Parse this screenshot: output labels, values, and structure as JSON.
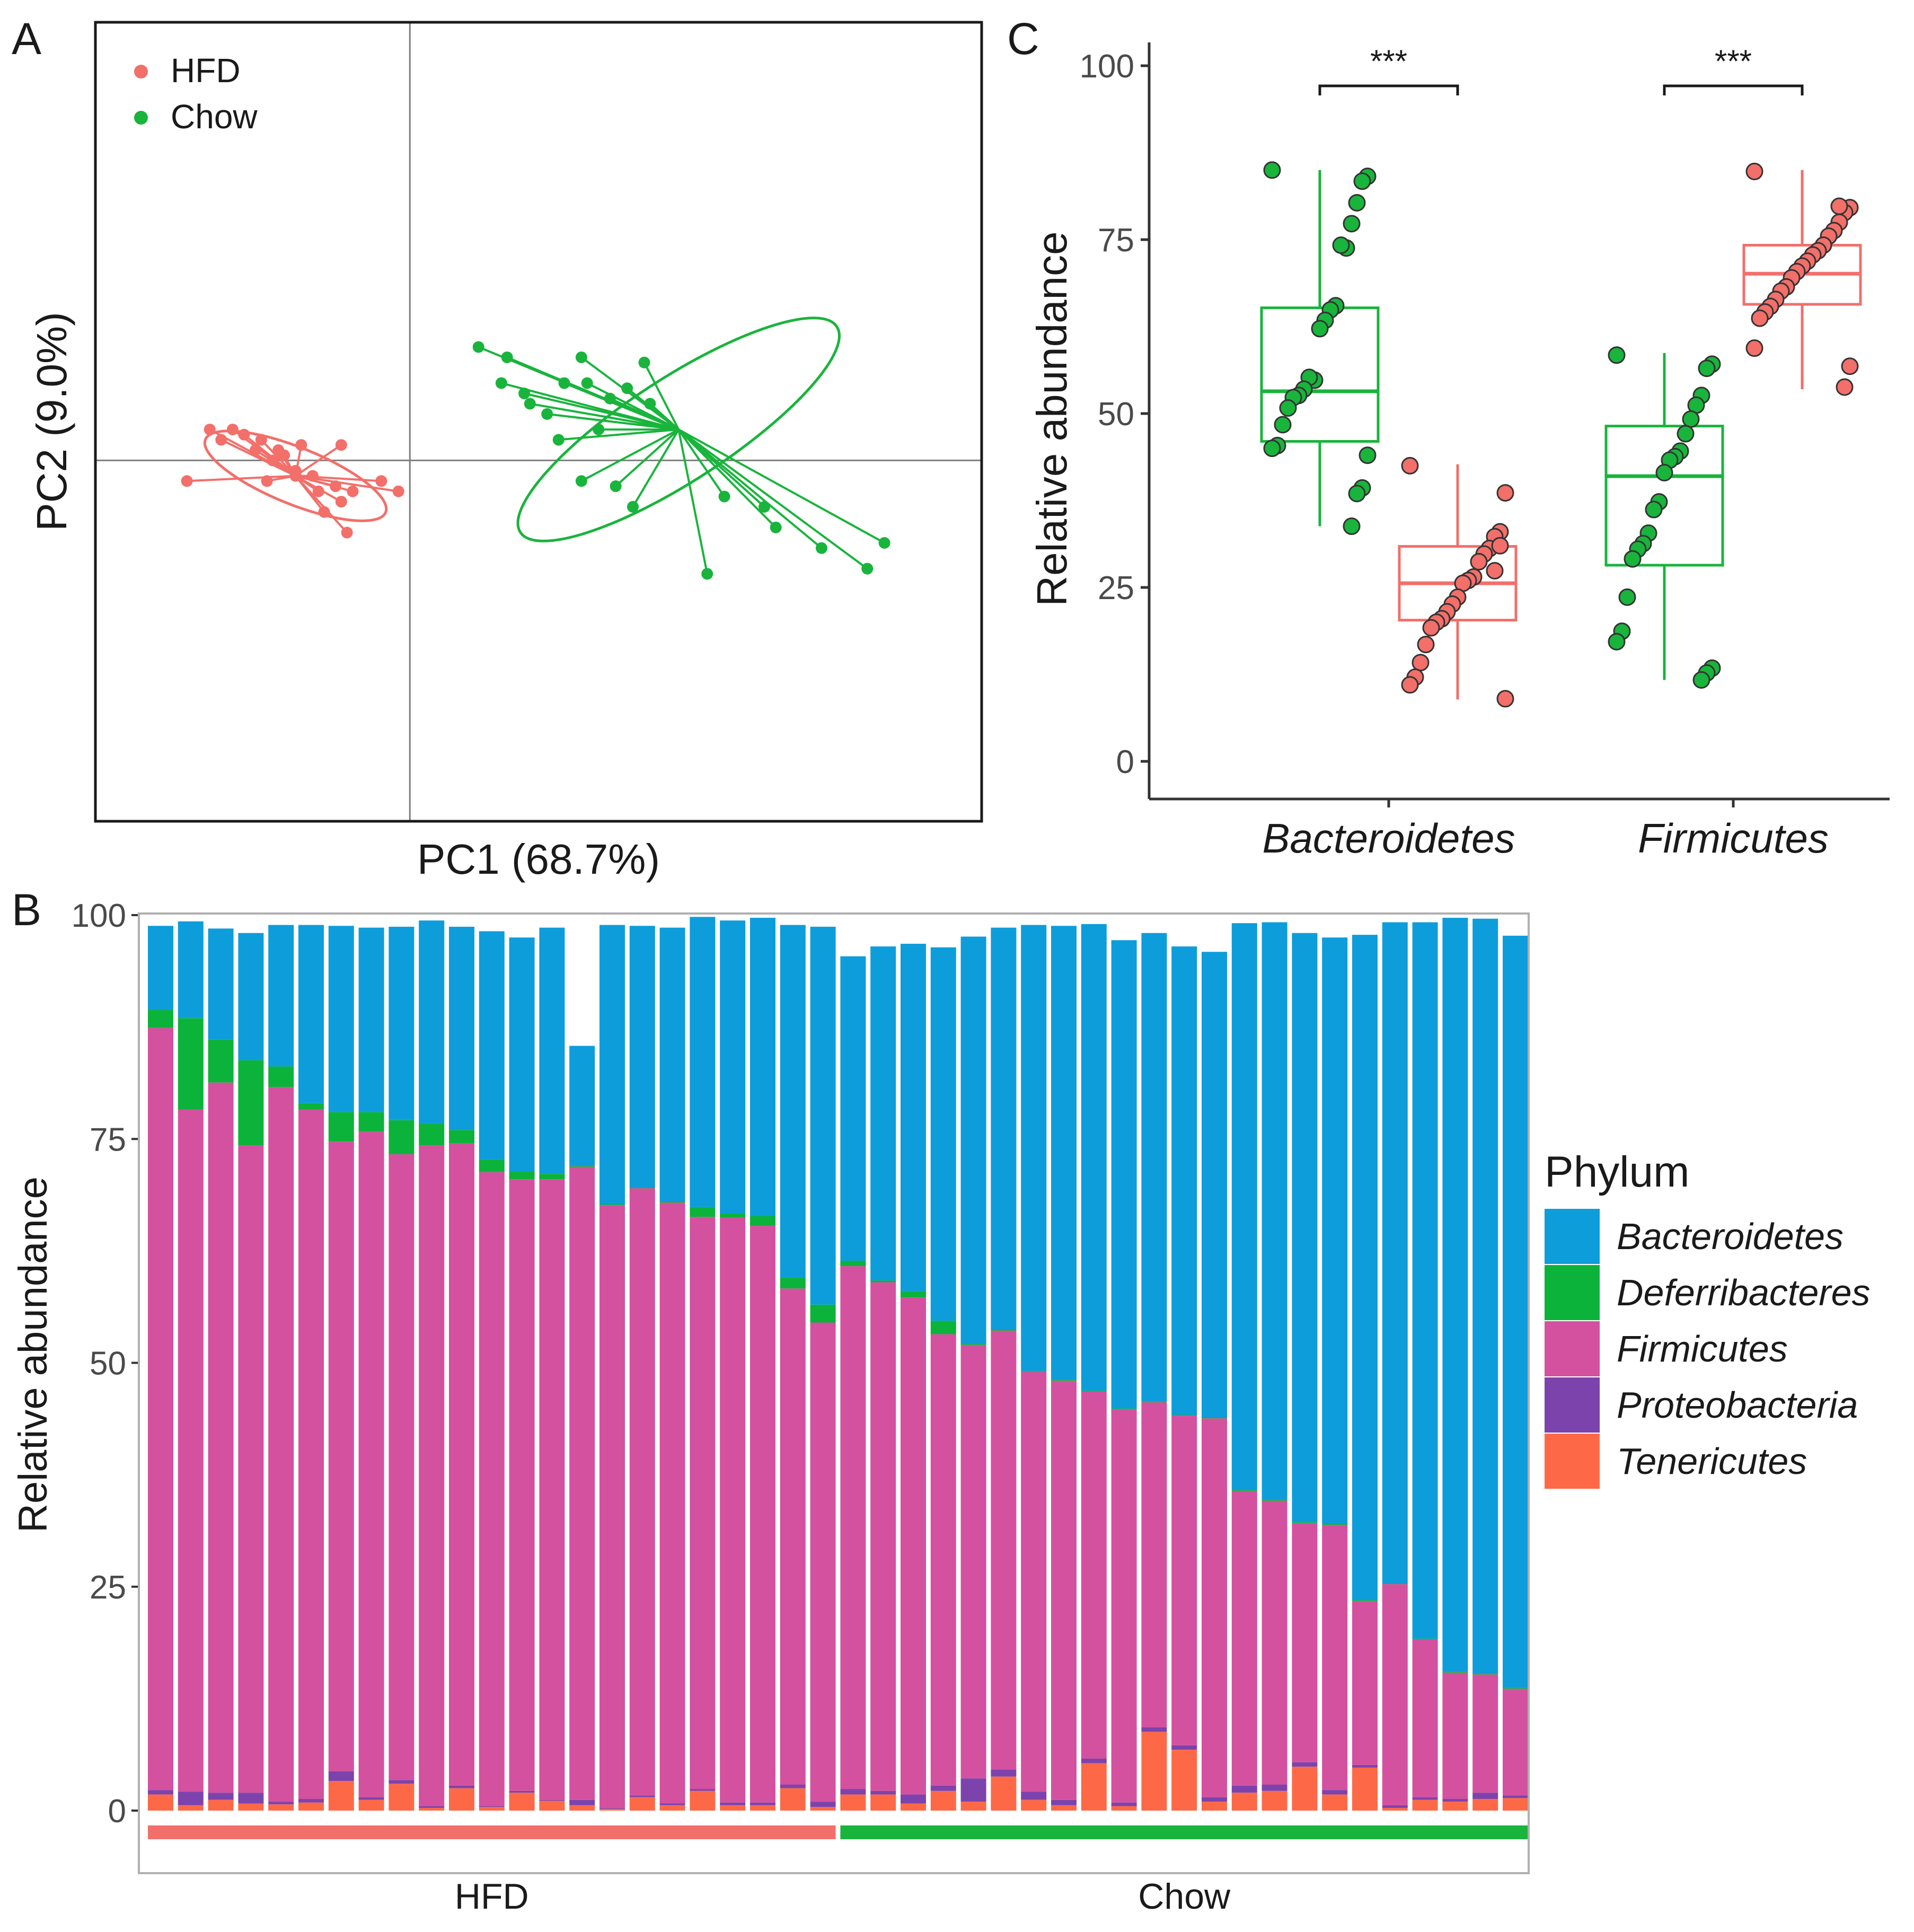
{
  "colors": {
    "hfd": "#f26f6a",
    "chow": "#19b43c",
    "bacteroidetes": "#0d9ddb",
    "deferribacteres": "#0cb33a",
    "firmicutes": "#d451a0",
    "proteobacteria": "#7d43ad",
    "tenericutes": "#fd6947",
    "axis": "#333333",
    "grid": "#7f7f7f"
  },
  "panel_labels": {
    "a": "A",
    "b": "B",
    "c": "C"
  },
  "chart_data": [
    {
      "id": "A",
      "type": "scatter",
      "title": "",
      "xlabel": "PC1 (68.7%)",
      "ylabel": "PC2 (9.0%)",
      "xlim": [
        -0.55,
        1.0
      ],
      "ylim": [
        -0.7,
        0.85
      ],
      "origin_lines": true,
      "legend": {
        "placement": "top-left",
        "entries": [
          "HFD",
          "Chow"
        ]
      },
      "series": [
        {
          "name": "HFD",
          "centroid": [
            -0.2,
            -0.03
          ],
          "ellipse": {
            "rx": 0.17,
            "ry": 0.055,
            "angle_deg": 22
          },
          "points": [
            [
              -0.39,
              -0.04
            ],
            [
              -0.35,
              0.06
            ],
            [
              -0.31,
              0.06
            ],
            [
              -0.33,
              0.04
            ],
            [
              -0.29,
              0.05
            ],
            [
              -0.27,
              0.02
            ],
            [
              -0.26,
              0.04
            ],
            [
              -0.24,
              0.0
            ],
            [
              -0.25,
              -0.04
            ],
            [
              -0.22,
              0.01
            ],
            [
              -0.23,
              0.02
            ],
            [
              -0.2,
              -0.02
            ],
            [
              -0.19,
              0.03
            ],
            [
              -0.2,
              -0.03
            ],
            [
              -0.17,
              -0.03
            ],
            [
              -0.16,
              -0.06
            ],
            [
              -0.13,
              -0.05
            ],
            [
              -0.15,
              -0.1
            ],
            [
              -0.12,
              -0.08
            ],
            [
              -0.1,
              -0.06
            ],
            [
              -0.11,
              -0.14
            ],
            [
              -0.02,
              -0.06
            ],
            [
              -0.05,
              -0.04
            ],
            [
              -0.12,
              0.03
            ]
          ]
        },
        {
          "name": "Chow",
          "centroid": [
            0.47,
            0.06
          ],
          "ellipse": {
            "rx": 0.33,
            "ry": 0.1,
            "angle_deg": -33
          },
          "points": [
            [
              0.12,
              0.22
            ],
            [
              0.16,
              0.15
            ],
            [
              0.17,
              0.2
            ],
            [
              0.2,
              0.13
            ],
            [
              0.21,
              0.11
            ],
            [
              0.24,
              0.09
            ],
            [
              0.27,
              0.15
            ],
            [
              0.3,
              0.2
            ],
            [
              0.31,
              0.15
            ],
            [
              0.33,
              0.06
            ],
            [
              0.35,
              0.12
            ],
            [
              0.38,
              0.14
            ],
            [
              0.41,
              0.19
            ],
            [
              0.42,
              0.11
            ],
            [
              0.26,
              0.04
            ],
            [
              0.3,
              -0.04
            ],
            [
              0.36,
              -0.05
            ],
            [
              0.39,
              -0.09
            ],
            [
              0.55,
              -0.07
            ],
            [
              0.62,
              -0.09
            ],
            [
              0.64,
              -0.13
            ],
            [
              0.72,
              -0.17
            ],
            [
              0.83,
              -0.16
            ],
            [
              0.8,
              -0.21
            ],
            [
              0.52,
              -0.22
            ]
          ]
        }
      ]
    },
    {
      "id": "B",
      "type": "bar",
      "stacked": true,
      "title": "",
      "xlabel": "",
      "ylabel": "Relative abundance",
      "ylim": [
        0,
        100
      ],
      "yticks": [
        0,
        25,
        50,
        75,
        100
      ],
      "legend": {
        "title": "Phylum",
        "placement": "right"
      },
      "groups": [
        {
          "name": "HFD",
          "start": 1,
          "end": 23
        },
        {
          "name": "Chow",
          "start": 24,
          "end": 46
        }
      ],
      "samples": [
        "1",
        "2",
        "3",
        "4",
        "5",
        "6",
        "7",
        "8",
        "9",
        "10",
        "11",
        "12",
        "13",
        "14",
        "15",
        "16",
        "17",
        "18",
        "19",
        "20",
        "21",
        "22",
        "23",
        "24",
        "25",
        "26",
        "27",
        "28",
        "29",
        "30",
        "31",
        "32",
        "33",
        "34",
        "35",
        "36",
        "37",
        "38",
        "39",
        "40",
        "41",
        "42",
        "43",
        "44",
        "45",
        "46"
      ],
      "series": [
        {
          "name": "Tenericutes",
          "values": [
            1.8,
            0.6,
            1.2,
            0.8,
            0.7,
            0.9,
            3.3,
            1.2,
            3.0,
            0.3,
            2.5,
            0.4,
            2.0,
            1.1,
            0.6,
            0.2,
            1.5,
            0.6,
            2.2,
            0.6,
            0.6,
            2.5,
            0.4,
            1.8,
            1.8,
            0.8,
            2.2,
            1.0,
            3.8,
            1.2,
            0.6,
            5.3,
            0.5,
            8.8,
            6.8,
            1.0,
            2.0,
            2.2,
            4.9,
            1.8,
            4.8,
            0.3,
            1.2,
            1.0,
            1.3,
            1.4
          ]
        },
        {
          "name": "Proteobacteria",
          "values": [
            0.5,
            1.5,
            0.8,
            1.2,
            0.3,
            0.4,
            1.1,
            0.3,
            0.4,
            0.2,
            0.3,
            0.1,
            0.2,
            0.1,
            0.6,
            0.1,
            0.2,
            0.2,
            0.2,
            0.3,
            0.3,
            0.4,
            0.6,
            0.6,
            0.4,
            1.0,
            0.6,
            2.6,
            0.8,
            0.9,
            0.6,
            0.5,
            0.4,
            0.5,
            0.5,
            0.5,
            0.8,
            0.7,
            0.5,
            0.5,
            0.3,
            0.3,
            0.3,
            0.3,
            0.7,
            0.3
          ]
        },
        {
          "name": "Firmicutes",
          "values": [
            85.1,
            76.2,
            79.3,
            72.3,
            79.8,
            77.0,
            70.3,
            74.3,
            69.9,
            73.8,
            71.7,
            70.8,
            68.3,
            69.3,
            70.7,
            67.3,
            67.8,
            67.1,
            63.9,
            65.3,
            64.4,
            55.4,
            53.5,
            58.4,
            56.8,
            55.5,
            50.4,
            48.4,
            49.0,
            46.9,
            46.8,
            41.0,
            43.9,
            36.3,
            36.8,
            42.3,
            32.9,
            31.7,
            26.7,
            29.6,
            18.3,
            24.7,
            17.6,
            14.1,
            13.2,
            11.9
          ]
        },
        {
          "name": "Deferribacteres",
          "values": [
            2.0,
            10.2,
            4.8,
            9.5,
            2.3,
            0.7,
            3.3,
            2.2,
            3.8,
            2.4,
            1.5,
            1.4,
            0.9,
            0.6,
            0.1,
            0.1,
            0.1,
            0.1,
            1.1,
            0.5,
            1.1,
            1.2,
            2.0,
            0.6,
            0.2,
            0.7,
            1.5,
            0.1,
            0.1,
            0.1,
            0.1,
            0.1,
            0.1,
            0.1,
            0.1,
            0.1,
            0.1,
            0.1,
            0.1,
            0.1,
            0.1,
            0.1,
            0.1,
            0.1,
            0.1,
            0.1
          ]
        },
        {
          "name": "Bacteroidetes",
          "values": [
            9.4,
            10.8,
            12.4,
            14.2,
            15.8,
            19.9,
            20.8,
            20.6,
            21.6,
            22.7,
            22.7,
            25.5,
            26.1,
            27.5,
            13.4,
            31.2,
            29.2,
            30.6,
            32.4,
            32.7,
            33.3,
            39.4,
            42.2,
            34.0,
            37.3,
            38.8,
            41.7,
            45.5,
            44.9,
            49.8,
            50.7,
            52.1,
            52.3,
            52.3,
            52.3,
            52.0,
            63.3,
            64.5,
            65.8,
            65.5,
            74.3,
            73.8,
            80.0,
            84.2,
            84.3,
            84.0
          ]
        }
      ]
    },
    {
      "id": "C",
      "type": "box",
      "title": "",
      "xlabel": "",
      "ylabel": "Relative abundance",
      "ylim": [
        0,
        100
      ],
      "yticks": [
        0,
        25,
        50,
        75,
        100
      ],
      "categories": [
        "Bacteroidetes",
        "Firmicutes"
      ],
      "significance": [
        {
          "category": "Bacteroidetes",
          "label": "***"
        },
        {
          "category": "Firmicutes",
          "label": "***"
        }
      ],
      "boxes": [
        {
          "category": "Bacteroidetes",
          "group": "Chow",
          "min": 33.8,
          "q1": 46.0,
          "median": 53.2,
          "q3": 65.2,
          "max": 85.0,
          "points": [
            85,
            84.1,
            83.4,
            80.3,
            77.3,
            73.8,
            74.2,
            65.5,
            64.9,
            63.4,
            62.2,
            54.8,
            55.2,
            53.5,
            52.6,
            52.3,
            50.8,
            48.4,
            45.4,
            45.0,
            44.0,
            39.3,
            38.5,
            33.8
          ]
        },
        {
          "category": "Bacteroidetes",
          "group": "HFD",
          "min": 8.9,
          "q1": 20.3,
          "median": 25.6,
          "q3": 30.9,
          "max": 42.7,
          "points": [
            42.5,
            38.6,
            33.0,
            32.3,
            30.6,
            29.8,
            28.7,
            26.5,
            26.0,
            25.6,
            23.6,
            22.6,
            21.5,
            20.5,
            20.0,
            19.2,
            16.8,
            14.2,
            12.1,
            11.0,
            9.0,
            31.0,
            27.4
          ]
        },
        {
          "category": "Firmicutes",
          "group": "Chow",
          "min": 11.7,
          "q1": 28.2,
          "median": 41.0,
          "q3": 48.2,
          "max": 58.7,
          "points": [
            58.4,
            57.1,
            56.5,
            52.6,
            51.2,
            49.2,
            47.1,
            44.6,
            43.8,
            43.3,
            41.5,
            37.3,
            36.2,
            32.8,
            31.3,
            30.5,
            29.1,
            23.6,
            18.7,
            17.2,
            13.4,
            12.7,
            11.7
          ]
        },
        {
          "category": "Firmicutes",
          "group": "HFD",
          "min": 53.5,
          "q1": 65.7,
          "median": 70.1,
          "q3": 74.2,
          "max": 85.0,
          "points": [
            84.8,
            79.6,
            78.9,
            77.5,
            76.3,
            75.5,
            74.2,
            73.4,
            72.8,
            71.9,
            71.2,
            70.4,
            69.5,
            68.2,
            67.6,
            66.4,
            65.4,
            64.6,
            63.7,
            59.4,
            56.8,
            53.8,
            79.8
          ]
        }
      ]
    }
  ]
}
